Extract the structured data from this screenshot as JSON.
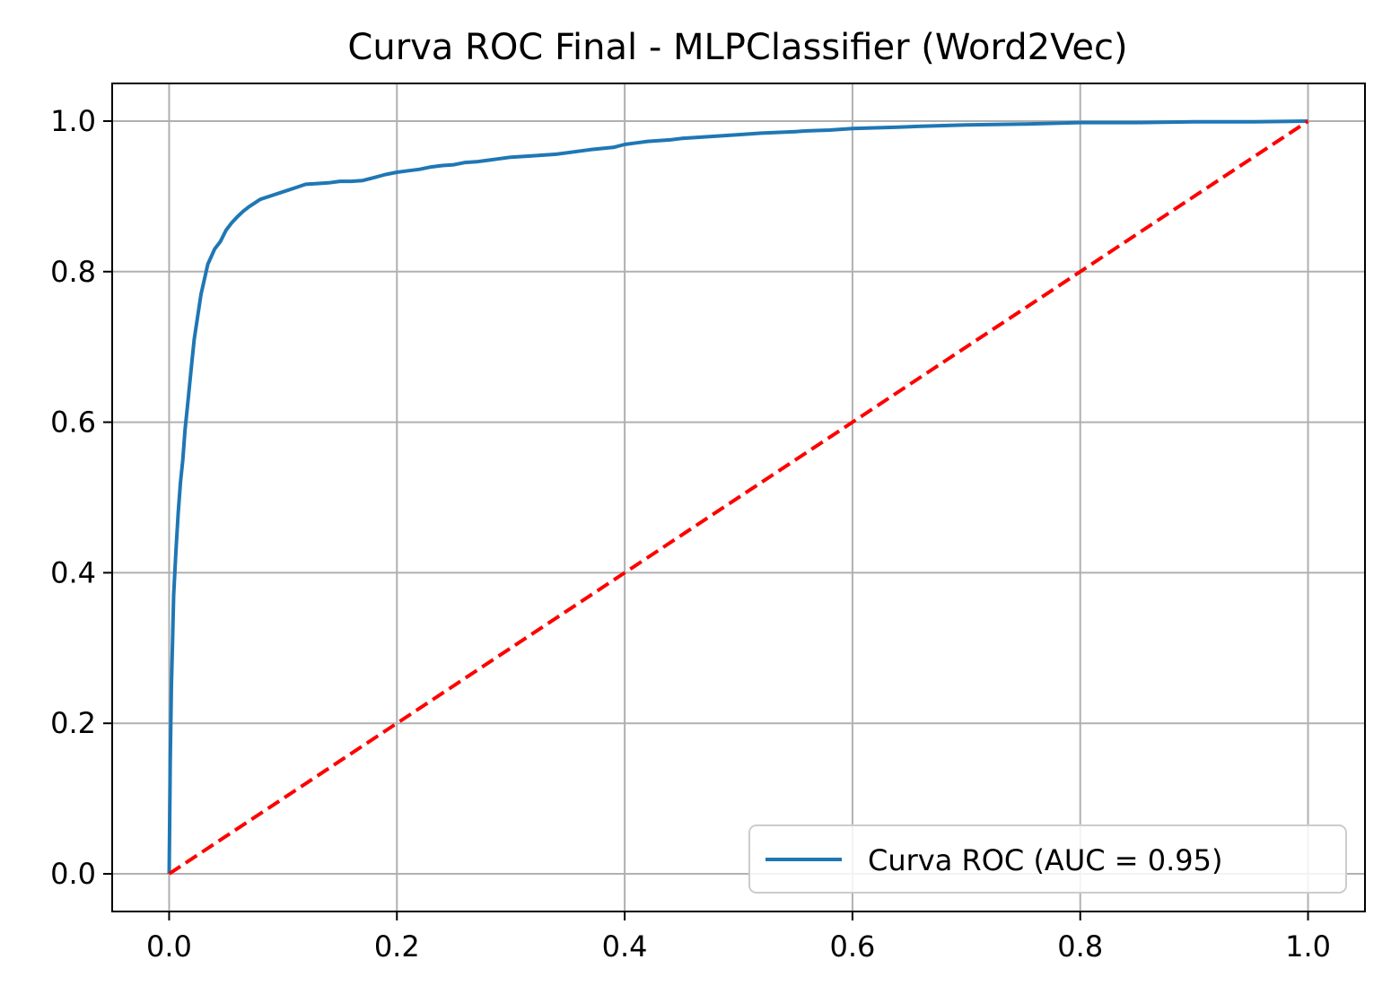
{
  "chart_data": {
    "type": "line",
    "title": "Curva ROC Final - MLPClassifier (Word2Vec)",
    "xlabel": "",
    "ylabel": "",
    "xlim": [
      -0.05,
      1.05
    ],
    "ylim": [
      -0.05,
      1.05
    ],
    "xticks": [
      0.0,
      0.2,
      0.4,
      0.6,
      0.8,
      1.0
    ],
    "yticks": [
      0.0,
      0.2,
      0.4,
      0.6,
      0.8,
      1.0
    ],
    "xtick_labels": [
      "0.0",
      "0.2",
      "0.4",
      "0.6",
      "0.8",
      "1.0"
    ],
    "ytick_labels": [
      "0.0",
      "0.2",
      "0.4",
      "0.6",
      "0.8",
      "1.0"
    ],
    "grid": true,
    "legend_position": "lower-right",
    "series": [
      {
        "name": "Curva ROC (AUC = 0.95)",
        "color": "#1f77b4",
        "style": "solid",
        "x": [
          0.0,
          0.001,
          0.002,
          0.003,
          0.004,
          0.006,
          0.008,
          0.01,
          0.012,
          0.014,
          0.016,
          0.018,
          0.02,
          0.022,
          0.025,
          0.028,
          0.031,
          0.034,
          0.037,
          0.04,
          0.045,
          0.05,
          0.055,
          0.06,
          0.065,
          0.07,
          0.075,
          0.08,
          0.09,
          0.1,
          0.11,
          0.12,
          0.13,
          0.14,
          0.15,
          0.16,
          0.17,
          0.18,
          0.19,
          0.2,
          0.21,
          0.22,
          0.23,
          0.24,
          0.25,
          0.26,
          0.27,
          0.28,
          0.3,
          0.32,
          0.34,
          0.35,
          0.37,
          0.39,
          0.4,
          0.41,
          0.42,
          0.44,
          0.45,
          0.47,
          0.5,
          0.52,
          0.55,
          0.56,
          0.58,
          0.6,
          0.62,
          0.64,
          0.66,
          0.7,
          0.75,
          0.8,
          0.85,
          0.9,
          0.95,
          1.0
        ],
        "y": [
          0.0,
          0.15,
          0.25,
          0.31,
          0.37,
          0.43,
          0.48,
          0.52,
          0.55,
          0.59,
          0.62,
          0.65,
          0.68,
          0.71,
          0.74,
          0.77,
          0.79,
          0.81,
          0.82,
          0.83,
          0.84,
          0.855,
          0.865,
          0.873,
          0.88,
          0.886,
          0.891,
          0.896,
          0.901,
          0.906,
          0.911,
          0.916,
          0.917,
          0.918,
          0.92,
          0.92,
          0.921,
          0.925,
          0.929,
          0.932,
          0.934,
          0.936,
          0.939,
          0.941,
          0.942,
          0.945,
          0.946,
          0.948,
          0.952,
          0.954,
          0.956,
          0.958,
          0.962,
          0.965,
          0.969,
          0.971,
          0.973,
          0.975,
          0.977,
          0.979,
          0.982,
          0.984,
          0.986,
          0.987,
          0.988,
          0.99,
          0.991,
          0.992,
          0.993,
          0.995,
          0.996,
          0.998,
          0.998,
          0.999,
          0.999,
          1.0
        ]
      },
      {
        "name": "",
        "color": "#ff0000",
        "style": "dashed",
        "x": [
          0.0,
          1.0
        ],
        "y": [
          0.0,
          1.0
        ]
      }
    ]
  }
}
